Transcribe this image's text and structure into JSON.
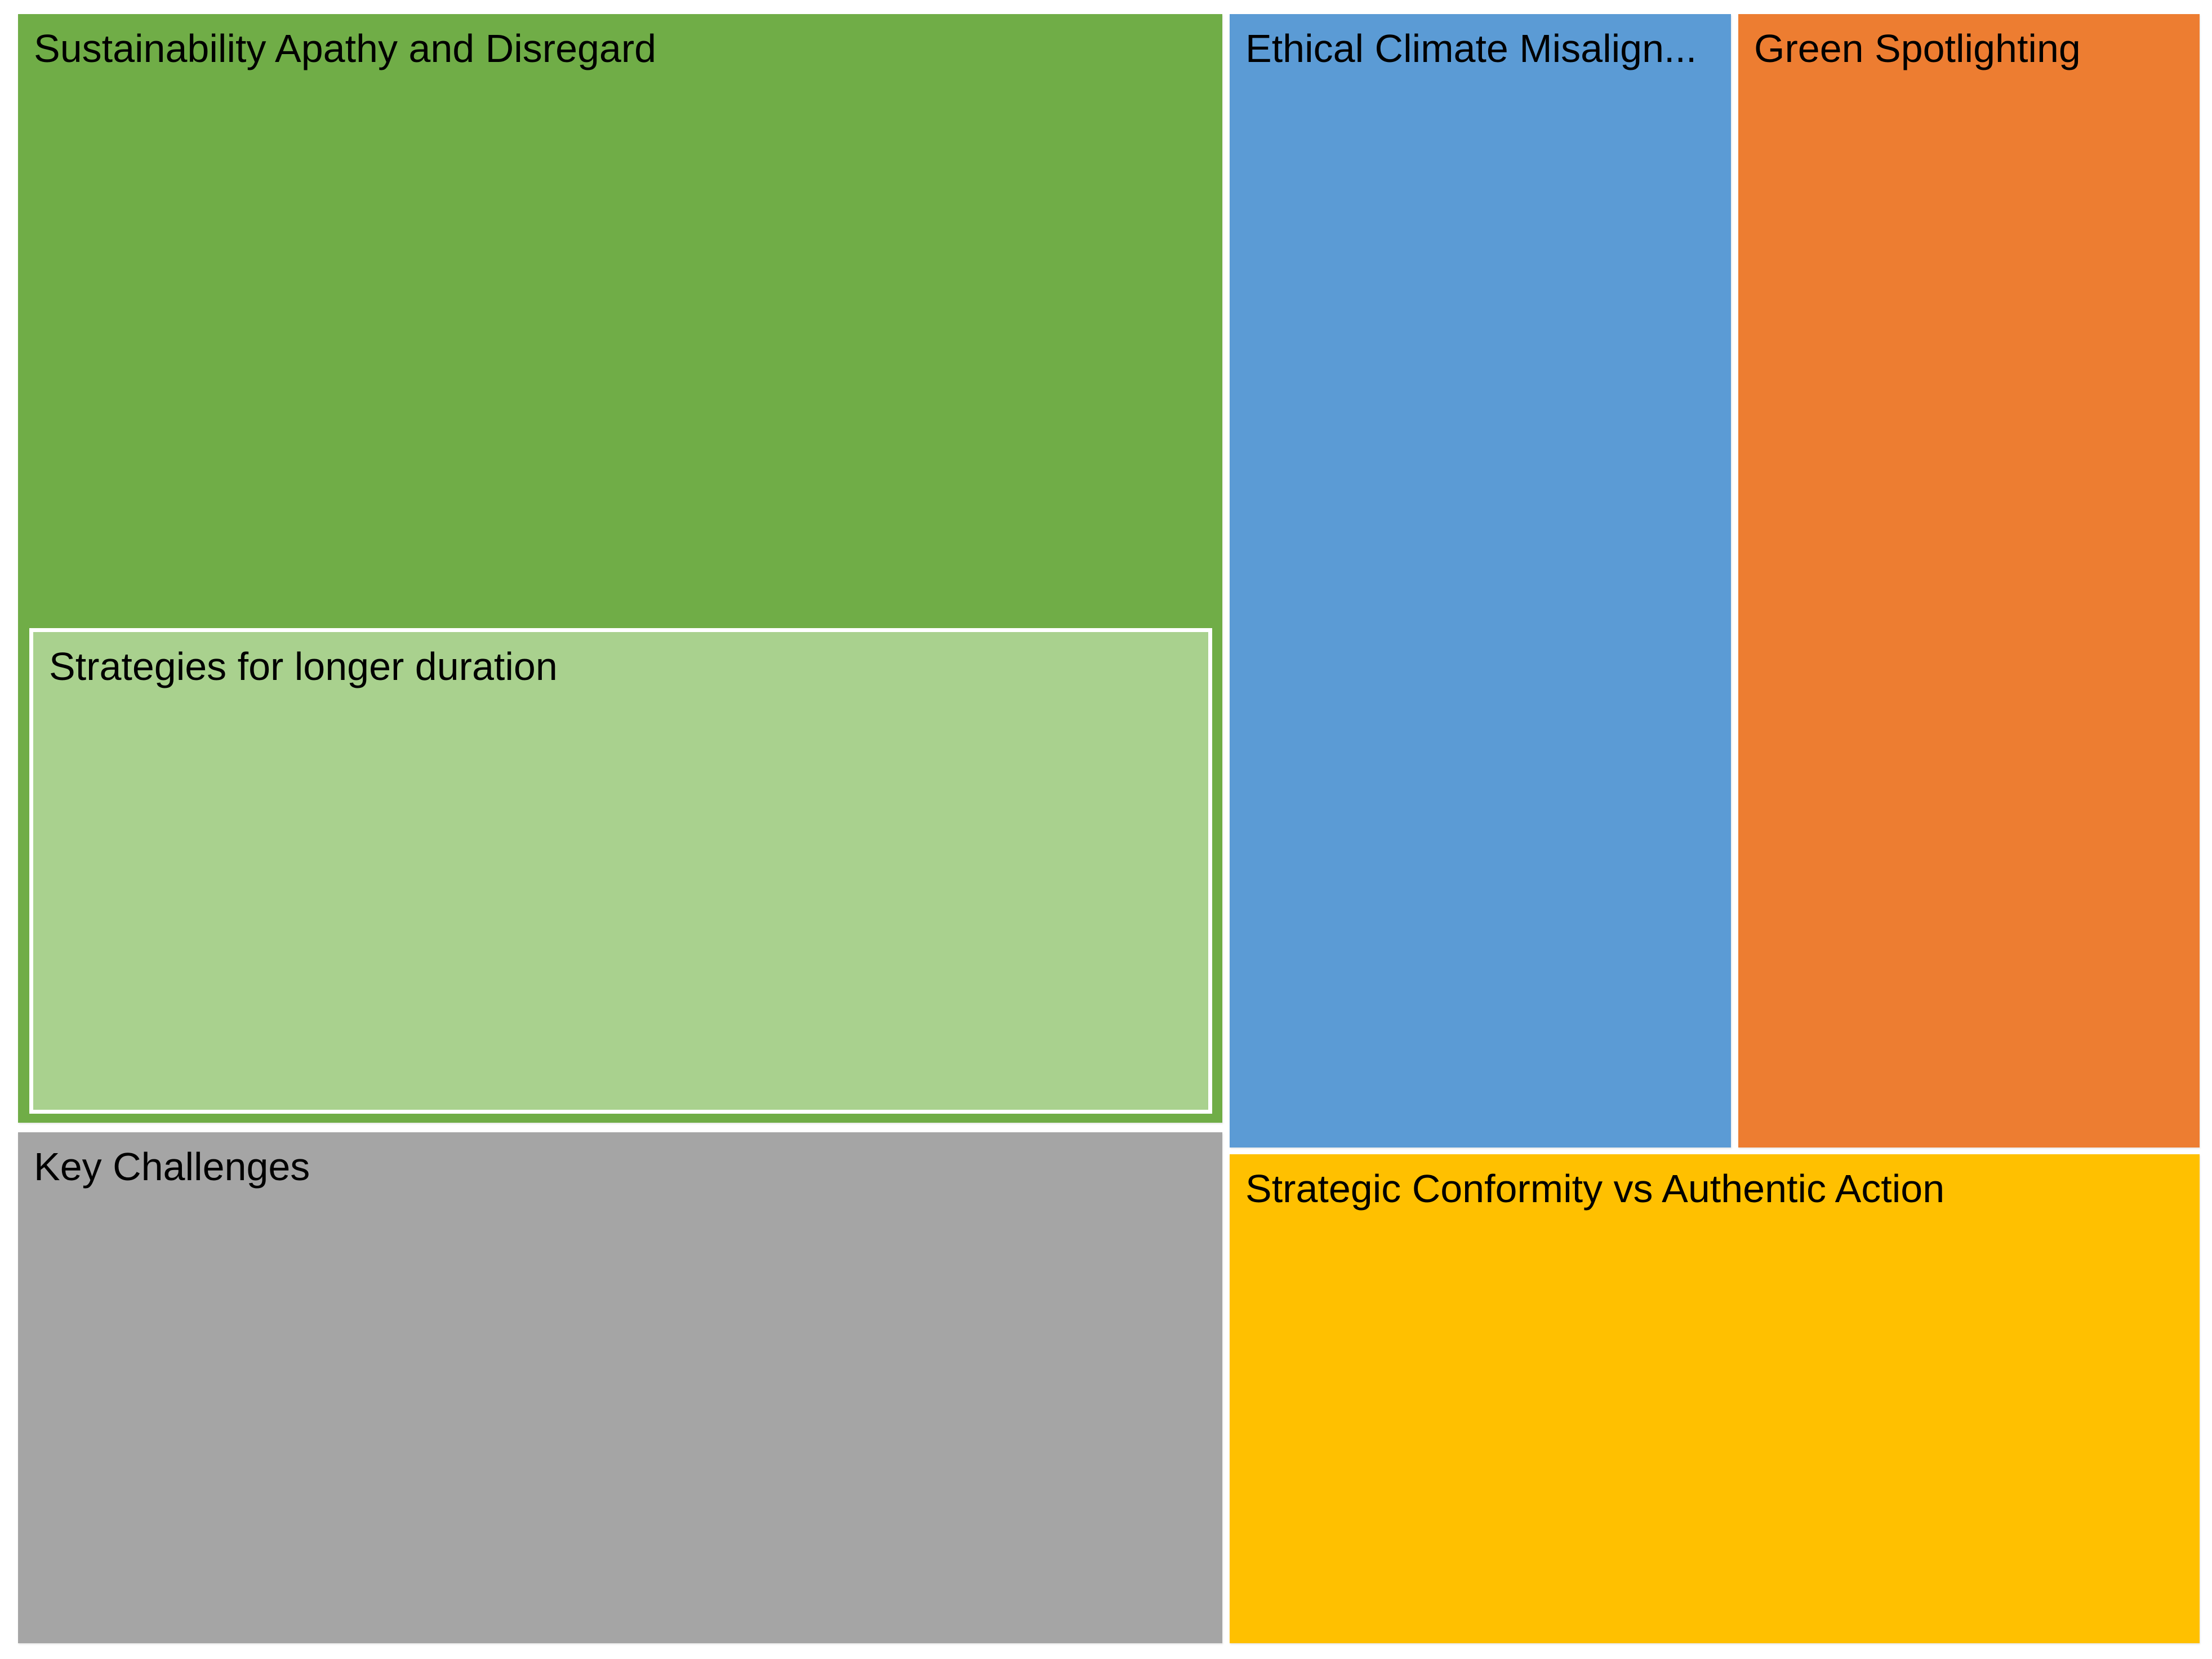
{
  "chart_data": {
    "type": "treemap",
    "title": "",
    "legend": "none",
    "values_shown": false,
    "background_color": "#FFFFFF",
    "label_text_color": "#000000",
    "nodes": [
      {
        "label": "Sustainability Apathy and Disregard",
        "color": "#70AD47",
        "approx_area_pct": 38,
        "children": [
          {
            "label": "Strategies for longer duration",
            "color": "#A9D18E",
            "border_color": "#FFFFFF",
            "approx_area_pct_of_parent": 43
          }
        ]
      },
      {
        "label": "Key Challenges",
        "color": "#A5A5A5",
        "approx_area_pct": 17.5
      },
      {
        "label": "Ethical Climate Misalign...",
        "label_truncated": true,
        "color": "#5B9BD5",
        "approx_area_pct": 16
      },
      {
        "label": "Green Spotlighting",
        "color": "#ED7D31",
        "approx_area_pct": 15
      },
      {
        "label": "Strategic Conformity vs Authentic Action",
        "color": "#FFC000",
        "approx_area_pct": 13.5
      }
    ]
  }
}
